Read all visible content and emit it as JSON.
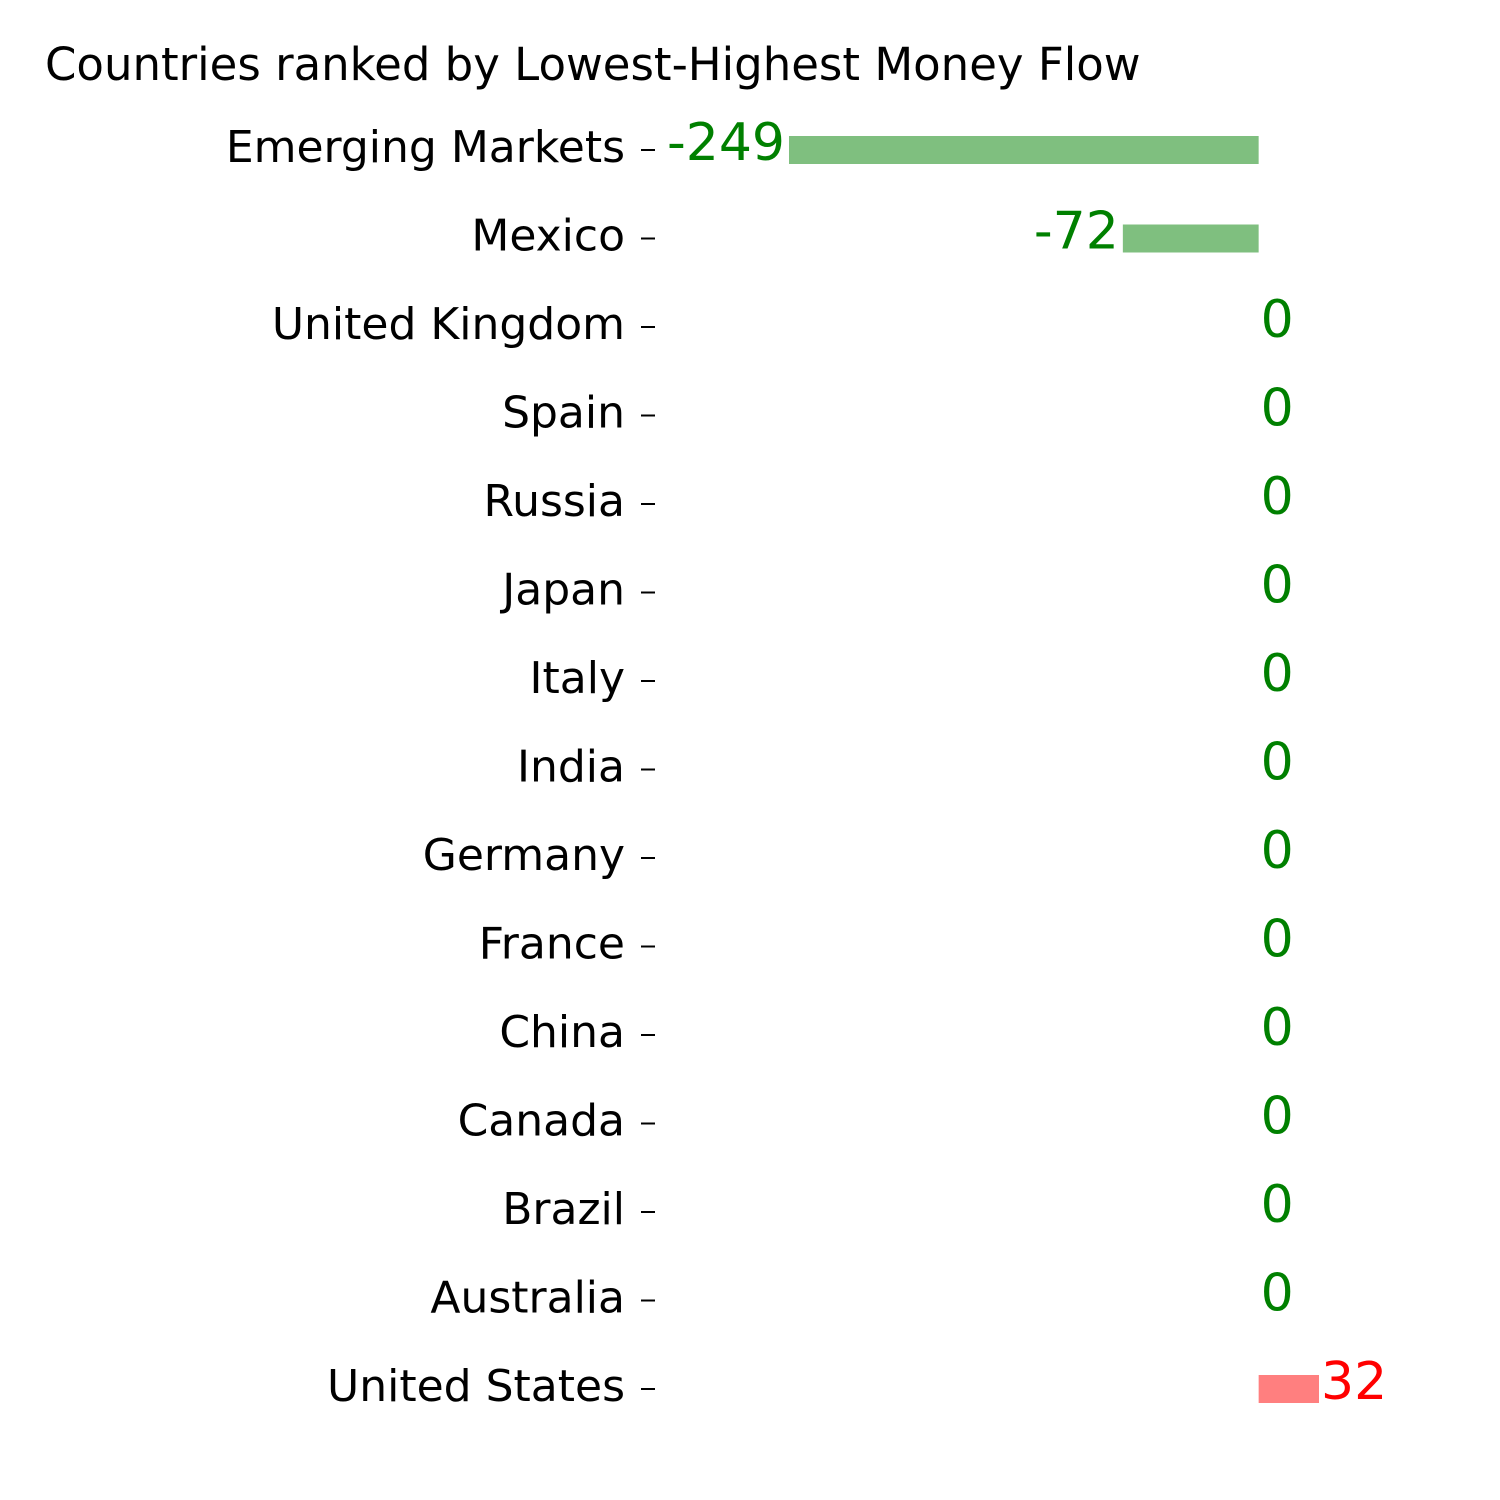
{
  "chart_data": {
    "type": "barh",
    "title": "Countries ranked by Lowest-Highest Money Flow",
    "categories": [
      "Emerging Markets",
      "Mexico",
      "United Kingdom",
      "Spain",
      "Russia",
      "Japan",
      "Italy",
      "India",
      "Germany",
      "France",
      "China",
      "Canada",
      "Brazil",
      "Australia",
      "United States"
    ],
    "values": [
      -249,
      -72,
      0,
      0,
      0,
      0,
      0,
      0,
      0,
      0,
      0,
      0,
      0,
      0,
      32
    ],
    "negative_color": "#008000",
    "positive_color": "#ff0000",
    "grid": false
  }
}
